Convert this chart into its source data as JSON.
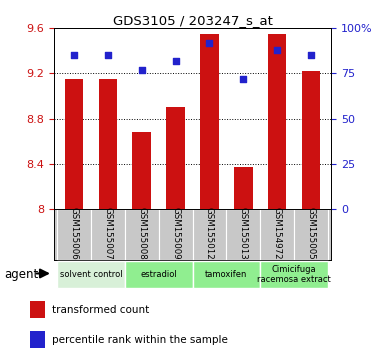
{
  "title": "GDS3105 / 203247_s_at",
  "samples": [
    "GSM155006",
    "GSM155007",
    "GSM155008",
    "GSM155009",
    "GSM155012",
    "GSM155013",
    "GSM154972",
    "GSM155005"
  ],
  "bar_values": [
    9.15,
    9.15,
    8.68,
    8.9,
    9.55,
    8.37,
    9.55,
    9.22
  ],
  "dot_values": [
    85,
    85,
    77,
    82,
    92,
    72,
    88,
    85
  ],
  "bar_color": "#cc1111",
  "dot_color": "#2222cc",
  "ylim_left": [
    8.0,
    9.6
  ],
  "ylim_right": [
    0,
    100
  ],
  "yticks_left": [
    8.0,
    8.4,
    8.8,
    9.2,
    9.6
  ],
  "ytick_labels_left": [
    "8",
    "8.4",
    "8.8",
    "9.2",
    "9.6"
  ],
  "yticks_right": [
    0,
    25,
    50,
    75,
    100
  ],
  "ytick_labels_right": [
    "0",
    "25",
    "50",
    "75",
    "100%"
  ],
  "bar_width": 0.55,
  "groups": [
    {
      "label": "solvent control",
      "start": 0,
      "end": 1,
      "color": "#d8f0d8"
    },
    {
      "label": "estradiol",
      "start": 2,
      "end": 3,
      "color": "#90ee90"
    },
    {
      "label": "tamoxifen",
      "start": 4,
      "end": 5,
      "color": "#90ee90"
    },
    {
      "label": "Cimicifuga\nracemosa extract",
      "start": 6,
      "end": 7,
      "color": "#90ee90"
    }
  ],
  "agent_label": "agent",
  "legend_bar": "transformed count",
  "legend_dot": "percentile rank within the sample",
  "bg_color": "#ffffff",
  "sample_bg_color": "#c8c8c8",
  "tick_label_color_left": "#cc1111",
  "tick_label_color_right": "#2222cc"
}
